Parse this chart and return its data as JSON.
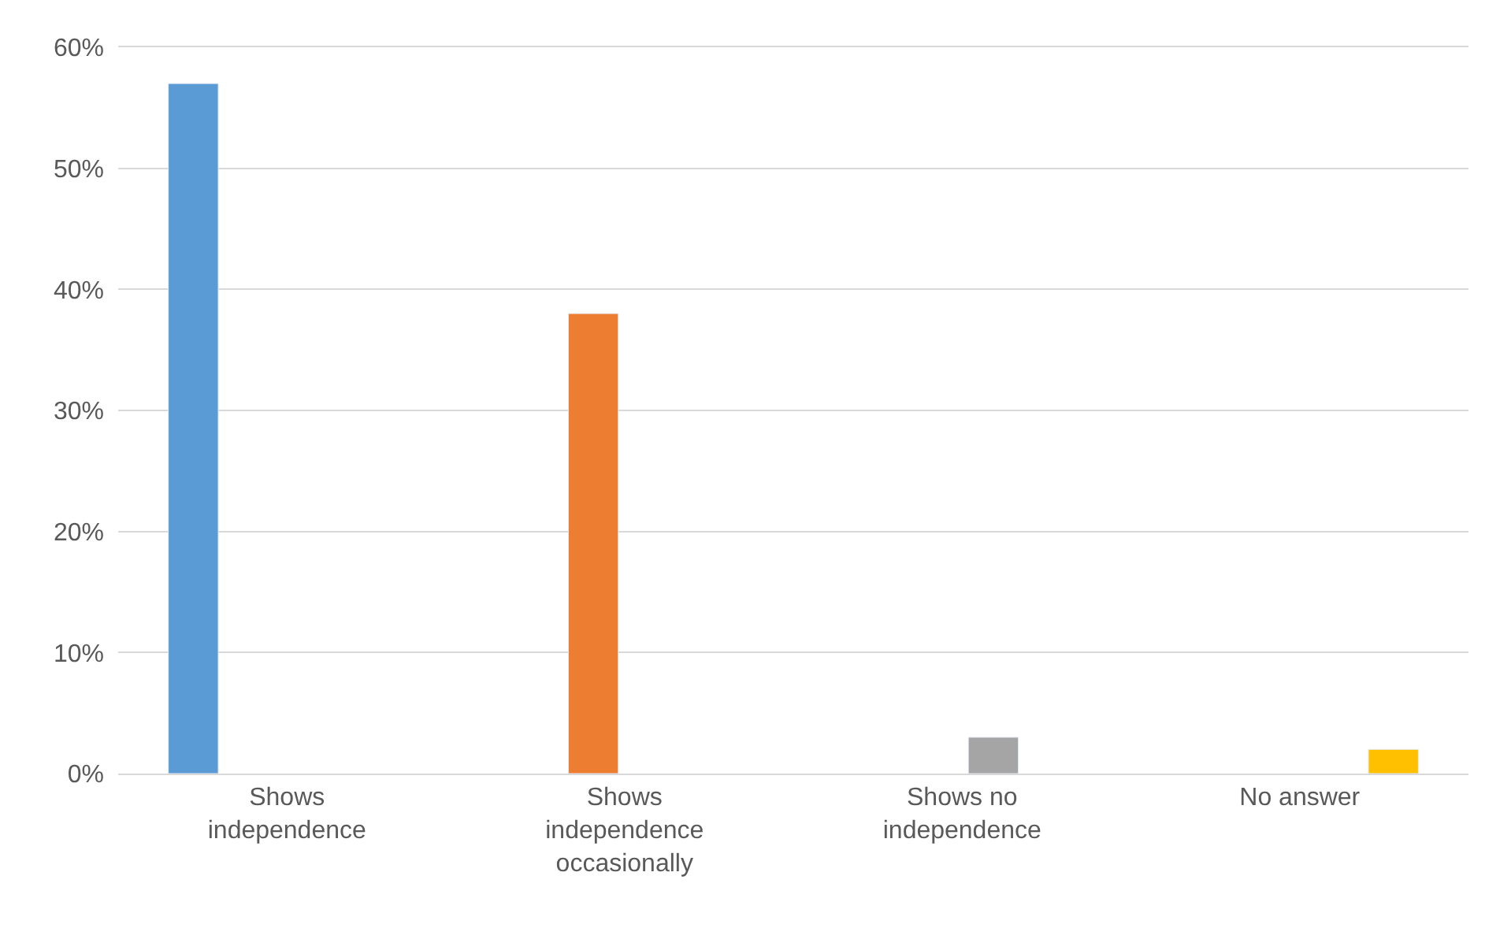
{
  "chart_data": {
    "type": "bar",
    "categories": [
      "Shows independence",
      "Shows independence occasionally",
      "Shows no independence",
      "No answer"
    ],
    "series": [
      {
        "color": "#5b9bd5",
        "values": [
          57,
          null,
          null,
          null
        ]
      },
      {
        "color": "#ed7d31",
        "values": [
          null,
          38,
          null,
          null
        ]
      },
      {
        "color": "#a5a5a5",
        "values": [
          null,
          null,
          3,
          null
        ]
      },
      {
        "color": "#ffc000",
        "values": [
          null,
          null,
          null,
          2
        ]
      }
    ],
    "ylim": [
      0,
      60
    ],
    "yticks": [
      {
        "value": 0,
        "label": "0%"
      },
      {
        "value": 10,
        "label": "10%"
      },
      {
        "value": 20,
        "label": "20%"
      },
      {
        "value": 30,
        "label": "30%"
      },
      {
        "value": 40,
        "label": "40%"
      },
      {
        "value": 50,
        "label": "50%"
      },
      {
        "value": 60,
        "label": "60%"
      }
    ],
    "grid": "y"
  }
}
